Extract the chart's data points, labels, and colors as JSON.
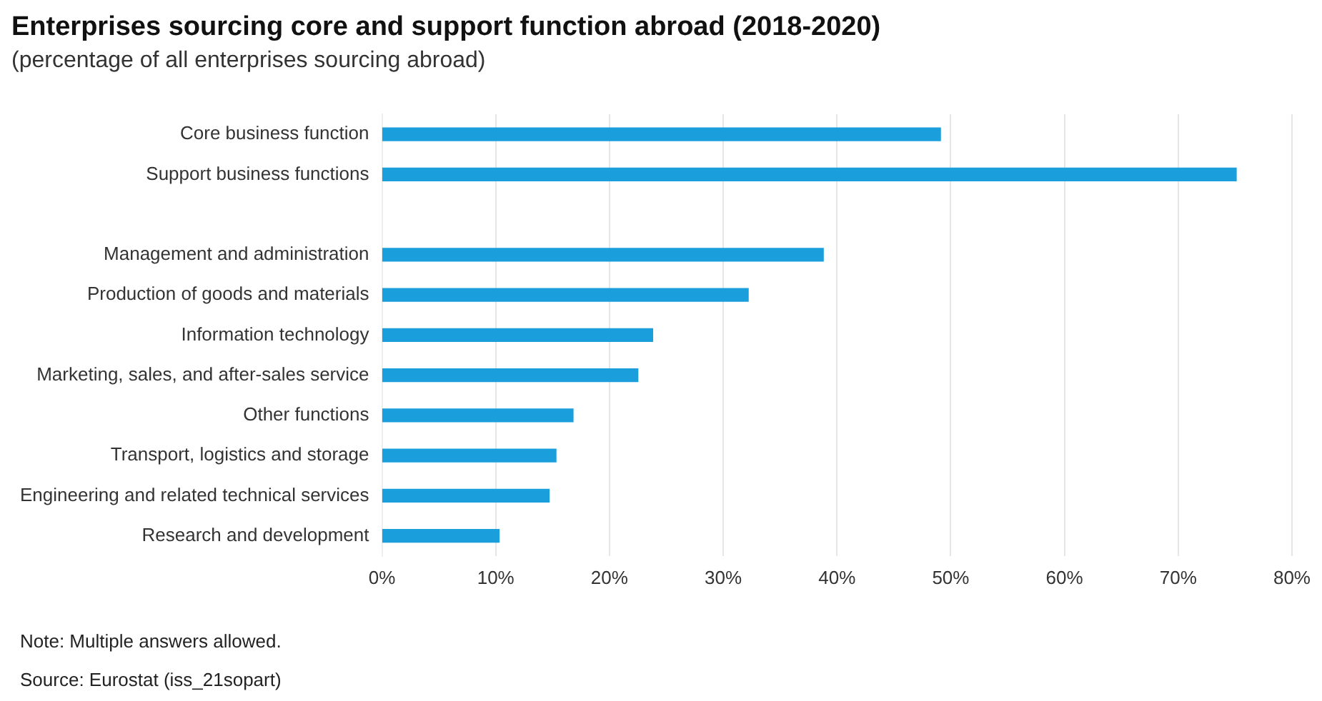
{
  "chart_data": {
    "type": "bar",
    "orientation": "horizontal",
    "title": "Enterprises sourcing core and support function abroad (2018-2020)",
    "subtitle": "(percentage of all enterprises sourcing abroad)",
    "categories": [
      "Core business function",
      "Support business functions",
      null,
      "Management and administration",
      "Production of goods and materials",
      "Information technology",
      "Marketing, sales, and after-sales service",
      "Other functions",
      "Transport, logistics and storage",
      "Engineering and related technical services",
      "Research and development"
    ],
    "values": [
      49.1,
      75.1,
      null,
      38.8,
      32.2,
      23.8,
      22.5,
      16.8,
      15.3,
      14.7,
      10.3
    ],
    "color": "#1a9fdc",
    "xlim": [
      0,
      80
    ],
    "xticks": [
      {
        "value": 0,
        "label": "0%"
      },
      {
        "value": 10,
        "label": "10%"
      },
      {
        "value": 20,
        "label": "20%"
      },
      {
        "value": 30,
        "label": "30%"
      },
      {
        "value": 40,
        "label": "40%"
      },
      {
        "value": 50,
        "label": "50%"
      },
      {
        "value": 60,
        "label": "60%"
      },
      {
        "value": 70,
        "label": "70%"
      },
      {
        "value": 80,
        "label": "80%"
      }
    ],
    "grid": "x",
    "annotations": [
      "Note: Multiple answers allowed.",
      "Source: Eurostat (iss_21sopart)"
    ]
  }
}
